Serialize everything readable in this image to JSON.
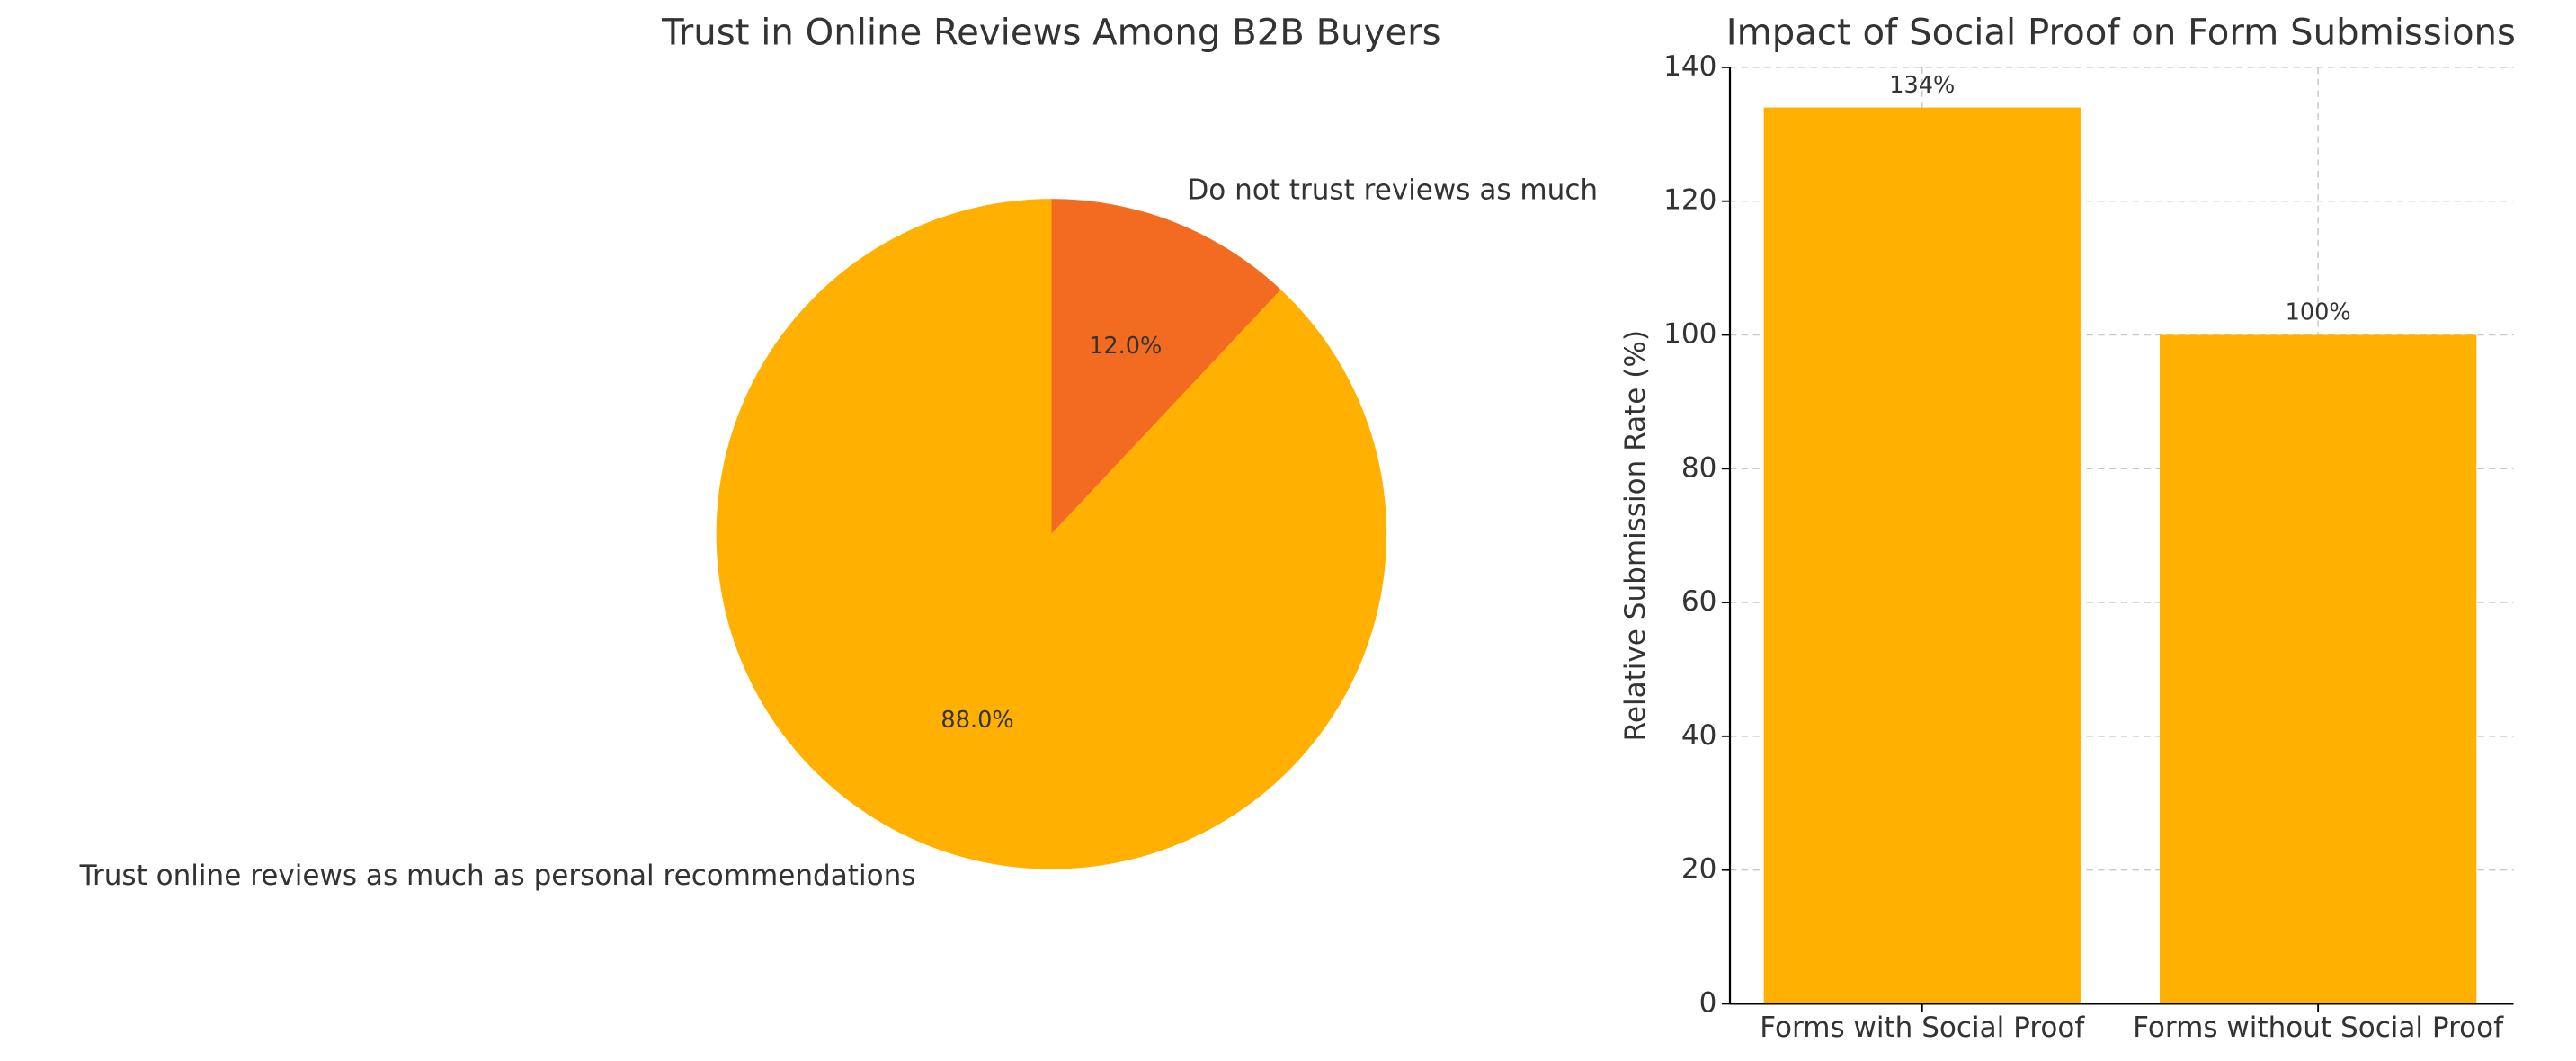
{
  "chart_data": [
    {
      "type": "pie",
      "title": "Trust in Online Reviews Among B2B Buyers",
      "categories": [
        "Trust online reviews as much as personal recommendations",
        "Do not trust reviews as much"
      ],
      "values": [
        88,
        12
      ],
      "value_labels": [
        "88.0%",
        "12.0%"
      ],
      "colors": [
        "#FFB000",
        "#F26B21"
      ]
    },
    {
      "type": "bar",
      "title": "Impact of Social Proof on Form Submissions",
      "ylabel": "Relative Submission Rate (%)",
      "categories": [
        "Forms with Social Proof",
        "Forms without Social Proof"
      ],
      "values": [
        134,
        100
      ],
      "value_labels": [
        "134%",
        "100%"
      ],
      "color": "#FFB000",
      "ylim": [
        0,
        140
      ],
      "yticks": [
        0,
        20,
        40,
        60,
        80,
        100,
        120,
        140
      ],
      "grid": true
    }
  ]
}
